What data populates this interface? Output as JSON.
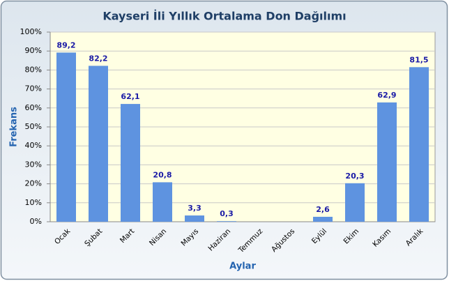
{
  "chart_data": {
    "type": "bar",
    "title": "Kayseri İli Yıllık Ortalama Don Dağılımı",
    "x_label": "Aylar",
    "y_label": "Frekans",
    "categories": [
      "Ocak",
      "Şubat",
      "Mart",
      "Nisan",
      "Mayıs",
      "Haziran",
      "Temmuz",
      "Ağustos",
      "Eylül",
      "Ekim",
      "Kasım",
      "Aralık"
    ],
    "values": [
      89.2,
      82.2,
      62.1,
      20.8,
      3.3,
      0.3,
      0,
      0,
      2.6,
      20.3,
      62.9,
      81.5
    ],
    "value_labels": [
      "89,2",
      "82,2",
      "62,1",
      "20,8",
      "3,3",
      "0,3",
      null,
      null,
      "2,6",
      "20,3",
      "62,9",
      "81,5"
    ],
    "color": "#5e93e0",
    "ylim": [
      0,
      100
    ],
    "yticks": [
      {
        "value": 0,
        "label": "0%"
      },
      {
        "value": 10,
        "label": "10%"
      },
      {
        "value": 20,
        "label": "20%"
      },
      {
        "value": 30,
        "label": "30%"
      },
      {
        "value": 40,
        "label": "40%"
      },
      {
        "value": 50,
        "label": "50%"
      },
      {
        "value": 60,
        "label": "60%"
      },
      {
        "value": 70,
        "label": "70%"
      },
      {
        "value": 80,
        "label": "80%"
      },
      {
        "value": 90,
        "label": "90%"
      },
      {
        "value": 100,
        "label": "100%"
      }
    ],
    "grid": true
  }
}
